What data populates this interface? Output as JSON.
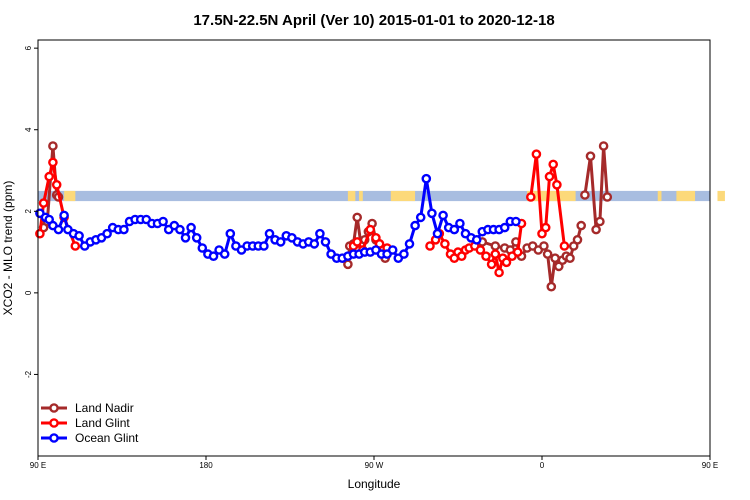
{
  "chart_data": {
    "type": "line",
    "title": "17.5N-22.5N April (Ver 10)   2015-01-01 to 2020-12-18",
    "xlabel": "Longitude",
    "ylabel": "XCO2 - MLO trend (ppm)",
    "xlim": [
      90,
      450
    ],
    "ylim": [
      -4,
      6.2
    ],
    "x_ticks": [
      {
        "value": 90,
        "label": "90 E"
      },
      {
        "value": 180,
        "label": "180"
      },
      {
        "value": 270,
        "label": "90 W"
      },
      {
        "value": 360,
        "label": "0"
      },
      {
        "value": 450,
        "label": "90 E"
      },
      {
        "value": 540,
        "label": "180"
      }
    ],
    "y_ticks": [
      {
        "value": -2,
        "label": "-2"
      },
      {
        "value": 0,
        "label": "0"
      },
      {
        "value": 2,
        "label": "2"
      },
      {
        "value": 4,
        "label": "4"
      },
      {
        "value": 6,
        "label": "6"
      }
    ],
    "grid": false,
    "legend_position": "bottom-left",
    "land_mask": {
      "y_range": [
        2.25,
        2.5
      ],
      "ocean_color": "#a8bde0",
      "land_color": "#fcd97a",
      "land_spans": [
        [
          104,
          110
        ],
        [
          256,
          260
        ],
        [
          262,
          264
        ],
        [
          279,
          292
        ],
        [
          352,
          378
        ],
        [
          422,
          424
        ],
        [
          432,
          442
        ],
        [
          454,
          458
        ]
      ]
    },
    "series": [
      {
        "name": "Land Nadir",
        "color": "#a52a2a",
        "segments": [
          [
            [
              93,
              1.6
            ],
            [
              95,
              1.75
            ],
            [
              98,
              3.6
            ],
            [
              100,
              2.4
            ],
            [
              101,
              2.35
            ]
          ],
          [
            [
              256,
              0.7
            ],
            [
              257,
              1.15
            ],
            [
              259,
              1.2
            ],
            [
              261,
              1.85
            ],
            [
              263,
              1.2
            ],
            [
              265,
              1.3
            ],
            [
              267,
              1.5
            ],
            [
              269,
              1.7
            ],
            [
              271,
              1.3
            ],
            [
              274,
              1.1
            ],
            [
              276,
              0.85
            ]
          ],
          [
            [
              328,
              1.25
            ],
            [
              335,
              1.15
            ],
            [
              340,
              1.1
            ],
            [
              343,
              1.05
            ],
            [
              346,
              1.25
            ],
            [
              349,
              0.9
            ],
            [
              352,
              1.1
            ],
            [
              355,
              1.15
            ],
            [
              358,
              1.05
            ],
            [
              361,
              1.15
            ],
            [
              363,
              0.95
            ],
            [
              365,
              0.15
            ],
            [
              367,
              0.85
            ],
            [
              369,
              0.65
            ],
            [
              371,
              0.8
            ],
            [
              373,
              0.9
            ],
            [
              375,
              0.85
            ],
            [
              377,
              1.15
            ],
            [
              379,
              1.3
            ],
            [
              381,
              1.65
            ]
          ],
          [
            [
              383,
              2.4
            ],
            [
              386,
              3.35
            ],
            [
              389,
              1.55
            ],
            [
              391,
              1.75
            ],
            [
              393,
              3.6
            ],
            [
              395,
              2.35
            ]
          ]
        ]
      },
      {
        "name": "Land Glint",
        "color": "#ff0000",
        "segments": [
          [
            [
              91,
              1.45
            ],
            [
              93,
              2.2
            ],
            [
              96,
              2.85
            ],
            [
              98,
              3.2
            ],
            [
              100,
              2.65
            ],
            [
              104,
              1.85
            ],
            [
              110,
              1.15
            ]
          ],
          [
            [
              259,
              1.15
            ],
            [
              261,
              1.25
            ],
            [
              264,
              1.05
            ],
            [
              268,
              1.55
            ],
            [
              271,
              1.35
            ],
            [
              273,
              1.2
            ],
            [
              275,
              1.05
            ],
            [
              277,
              1.1
            ]
          ],
          [
            [
              300,
              1.15
            ],
            [
              303,
              1.3
            ],
            [
              305,
              1.45
            ],
            [
              308,
              1.2
            ],
            [
              311,
              0.95
            ],
            [
              313,
              0.85
            ],
            [
              315,
              1.0
            ],
            [
              317,
              0.9
            ],
            [
              319,
              1.05
            ],
            [
              321,
              1.1
            ],
            [
              324,
              1.15
            ],
            [
              327,
              1.05
            ],
            [
              330,
              0.9
            ],
            [
              333,
              0.7
            ],
            [
              335,
              0.95
            ],
            [
              337,
              0.5
            ],
            [
              339,
              0.85
            ],
            [
              341,
              0.75
            ],
            [
              344,
              0.9
            ],
            [
              347,
              1.0
            ],
            [
              349,
              1.7
            ]
          ],
          [
            [
              354,
              2.35
            ],
            [
              357,
              3.4
            ],
            [
              360,
              1.45
            ],
            [
              362,
              1.6
            ],
            [
              364,
              2.85
            ],
            [
              366,
              3.15
            ],
            [
              368,
              2.65
            ],
            [
              372,
              1.15
            ]
          ]
        ]
      },
      {
        "name": "Ocean Glint",
        "color": "#0000ff",
        "segments": [
          [
            [
              91,
              1.95
            ],
            [
              94,
              1.85
            ],
            [
              96,
              1.8
            ],
            [
              98,
              1.65
            ],
            [
              101,
              1.55
            ],
            [
              104,
              1.9
            ],
            [
              106,
              1.55
            ],
            [
              109,
              1.45
            ],
            [
              112,
              1.4
            ],
            [
              115,
              1.15
            ],
            [
              118,
              1.25
            ],
            [
              121,
              1.3
            ],
            [
              124,
              1.35
            ],
            [
              127,
              1.45
            ],
            [
              130,
              1.6
            ],
            [
              133,
              1.55
            ],
            [
              136,
              1.55
            ],
            [
              139,
              1.75
            ],
            [
              142,
              1.8
            ],
            [
              145,
              1.8
            ],
            [
              148,
              1.8
            ],
            [
              151,
              1.7
            ],
            [
              154,
              1.7
            ],
            [
              157,
              1.75
            ],
            [
              160,
              1.55
            ],
            [
              163,
              1.65
            ],
            [
              166,
              1.55
            ],
            [
              169,
              1.35
            ],
            [
              172,
              1.6
            ],
            [
              175,
              1.35
            ],
            [
              178,
              1.1
            ],
            [
              181,
              0.95
            ],
            [
              184,
              0.9
            ],
            [
              187,
              1.05
            ],
            [
              190,
              0.95
            ],
            [
              193,
              1.45
            ],
            [
              196,
              1.15
            ],
            [
              199,
              1.05
            ],
            [
              202,
              1.15
            ],
            [
              205,
              1.15
            ],
            [
              208,
              1.15
            ],
            [
              211,
              1.15
            ],
            [
              214,
              1.45
            ],
            [
              217,
              1.3
            ],
            [
              220,
              1.25
            ],
            [
              223,
              1.4
            ],
            [
              226,
              1.35
            ],
            [
              229,
              1.25
            ],
            [
              232,
              1.2
            ],
            [
              235,
              1.25
            ],
            [
              238,
              1.2
            ],
            [
              241,
              1.45
            ],
            [
              244,
              1.25
            ],
            [
              247,
              0.95
            ],
            [
              250,
              0.85
            ],
            [
              253,
              0.85
            ],
            [
              256,
              0.9
            ],
            [
              259,
              0.95
            ],
            [
              262,
              0.95
            ],
            [
              265,
              1.0
            ],
            [
              268,
              1.0
            ],
            [
              271,
              1.05
            ],
            [
              274,
              0.95
            ],
            [
              277,
              0.95
            ],
            [
              280,
              1.05
            ],
            [
              283,
              0.85
            ],
            [
              286,
              0.95
            ],
            [
              289,
              1.2
            ],
            [
              292,
              1.65
            ],
            [
              295,
              1.85
            ],
            [
              298,
              2.8
            ],
            [
              301,
              1.95
            ],
            [
              304,
              1.45
            ],
            [
              307,
              1.9
            ],
            [
              310,
              1.6
            ],
            [
              313,
              1.55
            ],
            [
              316,
              1.7
            ],
            [
              319,
              1.45
            ],
            [
              322,
              1.35
            ],
            [
              325,
              1.3
            ],
            [
              328,
              1.5
            ],
            [
              331,
              1.55
            ],
            [
              334,
              1.55
            ],
            [
              337,
              1.55
            ],
            [
              340,
              1.6
            ],
            [
              343,
              1.75
            ],
            [
              346,
              1.75
            ]
          ]
        ]
      }
    ]
  }
}
